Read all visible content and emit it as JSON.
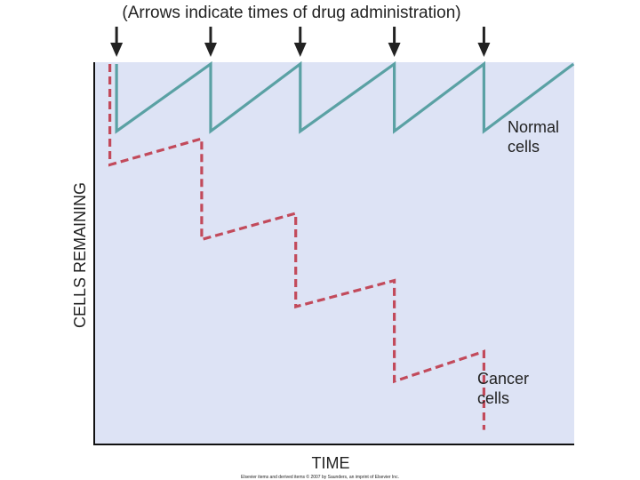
{
  "chart_data": {
    "type": "line",
    "annotation": "(Arrows indicate times of drug administration)",
    "xlabel": "TIME",
    "ylabel": "CELLS REMAINING",
    "xlim": [
      0,
      10
    ],
    "ylim": [
      0,
      100
    ],
    "grid": false,
    "dose_times": [
      0.3,
      2.4,
      4.4,
      6.5,
      8.5
    ],
    "series": [
      {
        "name": "Normal cells",
        "color": "#5aa1a4",
        "style": "solid",
        "points": [
          [
            0.3,
            100
          ],
          [
            0.3,
            82
          ],
          [
            2.4,
            100
          ],
          [
            2.4,
            82
          ],
          [
            4.4,
            100
          ],
          [
            4.4,
            82
          ],
          [
            6.5,
            100
          ],
          [
            6.5,
            82
          ],
          [
            8.5,
            100
          ],
          [
            8.5,
            82
          ],
          [
            10.5,
            100
          ]
        ]
      },
      {
        "name": "Cancer cells",
        "color": "#c24a5b",
        "style": "dashed",
        "points": [
          [
            0.15,
            100
          ],
          [
            0.15,
            73
          ],
          [
            2.2,
            80
          ],
          [
            2.2,
            53
          ],
          [
            4.3,
            60
          ],
          [
            4.3,
            35
          ],
          [
            6.5,
            42
          ],
          [
            6.5,
            15
          ],
          [
            8.5,
            23
          ],
          [
            8.5,
            2
          ]
        ]
      }
    ],
    "footer": "Elsevier items and derived items © 2007 by Saunders, an imprint of Elsevier Inc."
  }
}
